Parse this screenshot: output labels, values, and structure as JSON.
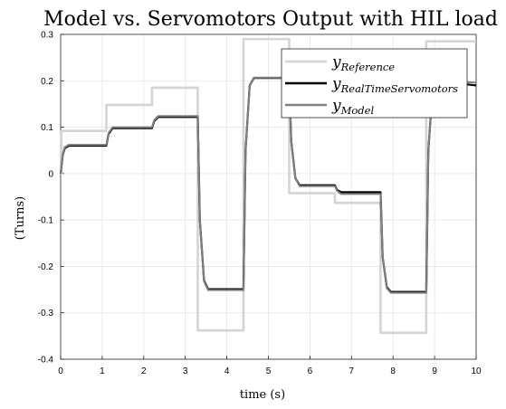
{
  "chart_data": {
    "type": "line",
    "title": "Model vs. Servomotors Output with HIL load",
    "xlabel": "time (s)",
    "ylabel": "(Turns)",
    "xlim": [
      0,
      10
    ],
    "ylim": [
      -0.4,
      0.3
    ],
    "xticks": [
      0,
      1,
      2,
      3,
      4,
      5,
      6,
      7,
      8,
      9,
      10
    ],
    "yticks": [
      -0.4,
      -0.3,
      -0.2,
      -0.1,
      0,
      0.1,
      0.2,
      0.3
    ],
    "xtick_labels": [
      "0",
      "1",
      "2",
      "3",
      "4",
      "5",
      "6",
      "7",
      "8",
      "9",
      "10"
    ],
    "ytick_labels": [
      "-0.4",
      "-0.3",
      "-0.2",
      "-0.1",
      "0",
      "0.1",
      "0.2",
      "0.3"
    ],
    "grid": true,
    "legend_position": "top-right",
    "series": [
      {
        "name": "Reference",
        "color": "#d4d4d4",
        "style": "step",
        "x": [
          0,
          0.02,
          1.1,
          2.2,
          3.3,
          4.4,
          5.5,
          6.6,
          7.7,
          8.8,
          10
        ],
        "y": [
          0,
          0.092,
          0.148,
          0.185,
          -0.338,
          0.29,
          -0.042,
          -0.063,
          -0.343,
          0.285,
          0.285
        ]
      },
      {
        "name": "RealTimeServomotors",
        "color": "#000000",
        "style": "line",
        "x": [
          0,
          0.05,
          0.1,
          0.2,
          1.1,
          1.15,
          1.25,
          2.2,
          2.25,
          2.35,
          3.3,
          3.35,
          3.45,
          3.55,
          4.4,
          4.45,
          4.55,
          4.65,
          5.5,
          5.55,
          5.65,
          5.75,
          6.6,
          6.65,
          6.75,
          7.7,
          7.75,
          7.85,
          7.95,
          8.8,
          8.85,
          8.95,
          9.05,
          10
        ],
        "y": [
          0,
          0.04,
          0.055,
          0.06,
          0.06,
          0.085,
          0.098,
          0.098,
          0.113,
          0.122,
          0.122,
          -0.1,
          -0.23,
          -0.249,
          -0.249,
          0.05,
          0.19,
          0.206,
          0.206,
          0.07,
          -0.01,
          -0.025,
          -0.025,
          -0.035,
          -0.04,
          -0.04,
          -0.18,
          -0.245,
          -0.255,
          -0.255,
          0.05,
          0.18,
          0.2,
          0.19
        ]
      },
      {
        "name": "Model",
        "color": "#808080",
        "style": "line",
        "x": [
          0,
          0.05,
          0.1,
          0.2,
          1.1,
          1.15,
          1.25,
          2.2,
          2.25,
          2.35,
          3.3,
          3.35,
          3.45,
          3.55,
          4.4,
          4.45,
          4.55,
          4.65,
          5.5,
          5.55,
          5.65,
          5.75,
          6.6,
          6.65,
          6.75,
          7.7,
          7.75,
          7.85,
          7.95,
          8.8,
          8.85,
          8.95,
          9.05,
          10
        ],
        "y": [
          0,
          0.042,
          0.057,
          0.062,
          0.062,
          0.087,
          0.1,
          0.1,
          0.115,
          0.124,
          0.124,
          -0.1,
          -0.232,
          -0.251,
          -0.251,
          0.05,
          0.19,
          0.207,
          0.207,
          0.07,
          -0.01,
          -0.027,
          -0.027,
          -0.037,
          -0.044,
          -0.044,
          -0.18,
          -0.247,
          -0.257,
          -0.257,
          0.05,
          0.18,
          0.202,
          0.196
        ]
      }
    ],
    "legend": [
      {
        "main": "y",
        "sub": "Reference",
        "color": "#d4d4d4"
      },
      {
        "main": "y",
        "sub": "RealTimeServomotors",
        "color": "#000000"
      },
      {
        "main": "y",
        "sub": "Model",
        "color": "#808080"
      }
    ]
  }
}
